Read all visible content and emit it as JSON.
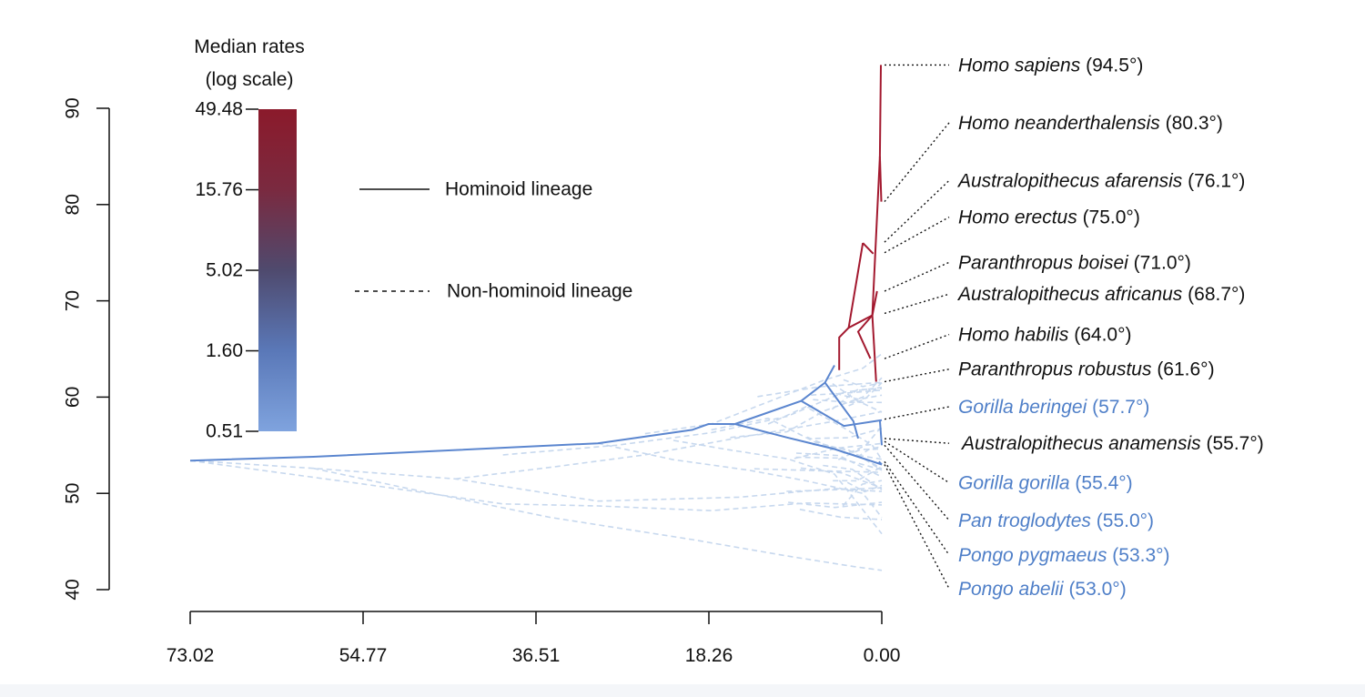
{
  "chart_data": {
    "type": "line",
    "title": "",
    "xlabel": "",
    "ylabel": "",
    "xlim": [
      73.02,
      0.0
    ],
    "ylim": [
      40,
      90
    ],
    "x_ticks": [
      "73.02",
      "54.77",
      "36.51",
      "18.26",
      "0.00"
    ],
    "y_ticks": [
      "40",
      "50",
      "60",
      "70",
      "80",
      "90"
    ],
    "colorbar": {
      "title_line1": "Median rates",
      "title_line2": "(log scale)",
      "ticks": [
        {
          "label": "49.48",
          "value": 49.48
        },
        {
          "label": "15.76",
          "value": 15.76
        },
        {
          "label": "5.02",
          "value": 5.02
        },
        {
          "label": "1.60",
          "value": 1.6
        },
        {
          "label": "0.51",
          "value": 0.51
        }
      ],
      "colors": [
        "#8b1a2b",
        "#7a2a40",
        "#4f4a6e",
        "#5a78b8",
        "#7fa3de"
      ]
    },
    "legend": {
      "solid_label": "Hominoid lineage",
      "dashed_label": "Non-hominoid lineage",
      "position": "top-left"
    },
    "colors": {
      "hominin": "#a3192f",
      "hominoid": "#5b86cf",
      "background_lineage": "#c7d8ee",
      "label_ape": "#4f7fc8",
      "label_hominin": "#111111"
    },
    "series": [
      {
        "name": "Homo sapiens",
        "x": [
          73.02,
          0.0
        ],
        "y": [
          53.4,
          94.5
        ]
      }
    ],
    "species": [
      {
        "name": "Homo sapiens",
        "angle": "(94.5°)",
        "group": "hominin",
        "tip": 94.5,
        "label_y": 94.5
      },
      {
        "name": "Homo neanderthalensis",
        "angle": "(80.3°)",
        "group": "hominin",
        "tip": 80.3,
        "label_y": 88.5
      },
      {
        "name": "Australopithecus afarensis",
        "angle": "(76.1°)",
        "group": "hominin",
        "tip": 76.1,
        "label_y": 82.5
      },
      {
        "name": "Homo erectus",
        "angle": "(75.0°)",
        "group": "hominin",
        "tip": 75.0,
        "label_y": 78.7
      },
      {
        "name": "Paranthropus boisei",
        "angle": "(71.0°)",
        "group": "hominin",
        "tip": 71.0,
        "label_y": 74.0
      },
      {
        "name": "Australopithecus africanus",
        "angle": "(68.7°)",
        "group": "hominin",
        "tip": 68.7,
        "label_y": 70.7
      },
      {
        "name": "Homo habilis",
        "angle": "(64.0°)",
        "group": "hominin",
        "tip": 64.0,
        "label_y": 66.5
      },
      {
        "name": "Paranthropus robustus",
        "angle": "(61.6°)",
        "group": "hominin",
        "tip": 61.6,
        "label_y": 62.9
      },
      {
        "name": "Gorilla beringei",
        "angle": "(57.7°)",
        "group": "ape",
        "tip": 57.7,
        "label_y": 59.0
      },
      {
        "name": "Australopithecus anamensis",
        "angle": "(55.7°)",
        "group": "hominin",
        "tip": 55.7,
        "label_y": 55.2
      },
      {
        "name": "Gorilla gorilla",
        "angle": "(55.4°)",
        "group": "ape",
        "tip": 55.4,
        "label_y": 51.1
      },
      {
        "name": "Pan troglodytes",
        "angle": "(55.0°)",
        "group": "ape",
        "tip": 55.0,
        "label_y": 47.2
      },
      {
        "name": "Pongo pygmaeus",
        "angle": "(53.3°)",
        "group": "ape",
        "tip": 53.3,
        "label_y": 43.6
      },
      {
        "name": "Pongo abelii",
        "angle": "(53.0°)",
        "group": "ape",
        "tip": 53.0,
        "label_y": 40.1
      }
    ]
  }
}
